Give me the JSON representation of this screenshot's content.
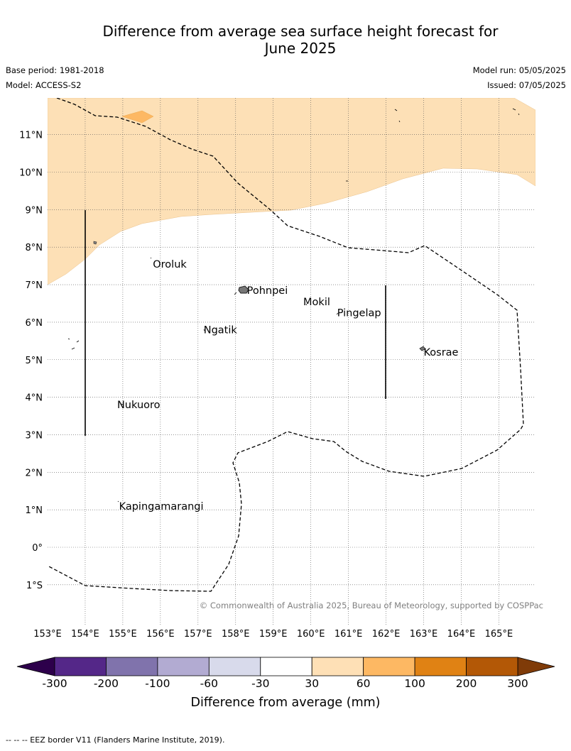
{
  "title_line1": "Difference from average sea surface height forecast for",
  "title_line2": "June 2025",
  "base_period": "Base period: 1981-2018",
  "model": "Model: ACCESS-S2",
  "model_run": "Model run: 05/05/2025",
  "issued": "Issued: 07/05/2025",
  "copyright": "© Commonwealth of Australia 2025, Bureau of Meteorology, supported by COSPPac",
  "footer_note": "--  --  -- EEZ border V11 (Flanders Marine Institute, 2019).",
  "lat_labels": [
    {
      "lat": 11,
      "text": "11°N"
    },
    {
      "lat": 10,
      "text": "10°N"
    },
    {
      "lat": 9,
      "text": "9°N"
    },
    {
      "lat": 8,
      "text": "8°N"
    },
    {
      "lat": 7,
      "text": "7°N"
    },
    {
      "lat": 6,
      "text": "6°N"
    },
    {
      "lat": 5,
      "text": "5°N"
    },
    {
      "lat": 4,
      "text": "4°N"
    },
    {
      "lat": 3,
      "text": "3°N"
    },
    {
      "lat": 2,
      "text": "2°N"
    },
    {
      "lat": 1,
      "text": "1°N"
    },
    {
      "lat": 0,
      "text": "0°"
    },
    {
      "lat": -1,
      "text": "1°S"
    }
  ],
  "lon_labels": [
    {
      "lon": 153,
      "text": "153°E"
    },
    {
      "lon": 154,
      "text": "154°E"
    },
    {
      "lon": 155,
      "text": "155°E"
    },
    {
      "lon": 156,
      "text": "156°E"
    },
    {
      "lon": 157,
      "text": "157°E"
    },
    {
      "lon": 158,
      "text": "158°E"
    },
    {
      "lon": 159,
      "text": "159°E"
    },
    {
      "lon": 160,
      "text": "160°E"
    },
    {
      "lon": 161,
      "text": "161°E"
    },
    {
      "lon": 162,
      "text": "162°E"
    },
    {
      "lon": 163,
      "text": "163°E"
    },
    {
      "lon": 164,
      "text": "164°E"
    },
    {
      "lon": 165,
      "text": "165°E"
    }
  ],
  "place_labels": [
    {
      "name": "Oroluk",
      "lon": 155.8,
      "lat": 7.55
    },
    {
      "name": "Pohnpei",
      "lon": 158.3,
      "lat": 6.85
    },
    {
      "name": "Mokil",
      "lon": 159.8,
      "lat": 6.55
    },
    {
      "name": "Pingelap",
      "lon": 160.7,
      "lat": 6.25
    },
    {
      "name": "Ngatik",
      "lon": 157.15,
      "lat": 5.8
    },
    {
      "name": "Kosrae",
      "lon": 163.0,
      "lat": 5.2
    },
    {
      "name": "Nukuoro",
      "lon": 154.85,
      "lat": 3.8
    },
    {
      "name": "Kapingamarangi",
      "lon": 154.9,
      "lat": 1.1
    }
  ],
  "shading": {
    "30 to 60": "#fde0b6",
    "60 to 100": "#fdb863"
  },
  "colorbar": {
    "label": "Difference from average (mm)",
    "tick_labels": [
      "-300",
      "-200",
      "-100",
      "-60",
      "-30",
      "30",
      "60",
      "100",
      "200",
      "300"
    ],
    "colors": [
      "#542788",
      "#8073ac",
      "#b2abd2",
      "#d8daeb",
      "#ffffff",
      "#fee0b6",
      "#fdb863",
      "#e08214",
      "#b35806"
    ],
    "extend_low_color": "#2d004b",
    "extend_high_color": "#7f3b08"
  }
}
